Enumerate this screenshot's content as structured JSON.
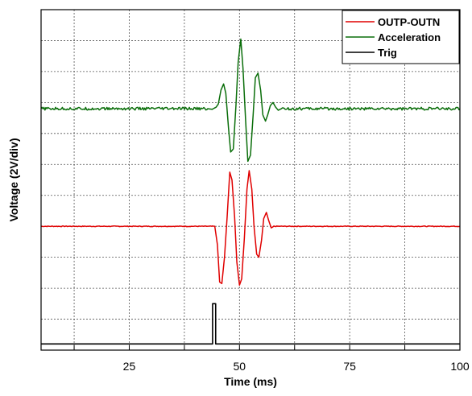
{
  "chart_data": {
    "type": "line",
    "title": "",
    "xlabel": "Time (ms)",
    "ylabel": "Voltage (2V/div)",
    "xlim": [
      5,
      100
    ],
    "ylim": [
      0,
      11
    ],
    "x_ticks": [
      25,
      50,
      75,
      100
    ],
    "grid": true,
    "grid_style": "dotted",
    "legend_position": "top-right",
    "series": [
      {
        "name": "OUTP-OUTN",
        "color": "#e00000",
        "baseline": 4.0,
        "points": [
          [
            5,
            4.0
          ],
          [
            43.9,
            4.0
          ],
          [
            44.4,
            4.0
          ],
          [
            45.0,
            3.4
          ],
          [
            45.5,
            2.2
          ],
          [
            46.0,
            2.15
          ],
          [
            46.6,
            3.0
          ],
          [
            47.2,
            4.3
          ],
          [
            47.8,
            5.75
          ],
          [
            48.3,
            5.5
          ],
          [
            48.9,
            4.3
          ],
          [
            49.4,
            2.85
          ],
          [
            50.0,
            2.1
          ],
          [
            50.5,
            2.3
          ],
          [
            51.1,
            3.6
          ],
          [
            51.7,
            5.2
          ],
          [
            52.2,
            5.8
          ],
          [
            52.8,
            5.2
          ],
          [
            53.3,
            4.0
          ],
          [
            53.9,
            3.1
          ],
          [
            54.4,
            3.0
          ],
          [
            55.0,
            3.55
          ],
          [
            55.5,
            4.25
          ],
          [
            56.1,
            4.45
          ],
          [
            56.6,
            4.2
          ],
          [
            57.2,
            3.95
          ],
          [
            57.8,
            4.0
          ],
          [
            100,
            4.0
          ]
        ]
      },
      {
        "name": "Acceleration",
        "color": "#0a6e0a",
        "baseline": 7.8,
        "points": [
          [
            5,
            7.8
          ],
          [
            42.8,
            7.8
          ],
          [
            43.8,
            7.78
          ],
          [
            44.7,
            7.85
          ],
          [
            45.2,
            7.95
          ],
          [
            45.8,
            8.4
          ],
          [
            46.4,
            8.6
          ],
          [
            46.9,
            8.3
          ],
          [
            47.5,
            7.2
          ],
          [
            48.0,
            6.4
          ],
          [
            48.6,
            6.5
          ],
          [
            49.2,
            7.9
          ],
          [
            49.7,
            9.3
          ],
          [
            50.3,
            10.05
          ],
          [
            50.8,
            9.1
          ],
          [
            51.4,
            7.4
          ],
          [
            51.9,
            6.1
          ],
          [
            52.5,
            6.3
          ],
          [
            53.1,
            7.6
          ],
          [
            53.6,
            8.8
          ],
          [
            54.2,
            8.95
          ],
          [
            54.8,
            8.4
          ],
          [
            55.3,
            7.6
          ],
          [
            55.9,
            7.4
          ],
          [
            56.4,
            7.6
          ],
          [
            57.0,
            7.9
          ],
          [
            57.6,
            8.0
          ],
          [
            58.2,
            7.85
          ],
          [
            58.8,
            7.75
          ],
          [
            59.5,
            7.8
          ],
          [
            100,
            7.8
          ]
        ]
      },
      {
        "name": "Trig",
        "color": "#000000",
        "baseline": 0.2,
        "points": [
          [
            5,
            0.2
          ],
          [
            43.9,
            0.2
          ],
          [
            43.9,
            1.5
          ],
          [
            44.6,
            1.5
          ],
          [
            44.6,
            0.2
          ],
          [
            100,
            0.2
          ]
        ]
      }
    ]
  }
}
